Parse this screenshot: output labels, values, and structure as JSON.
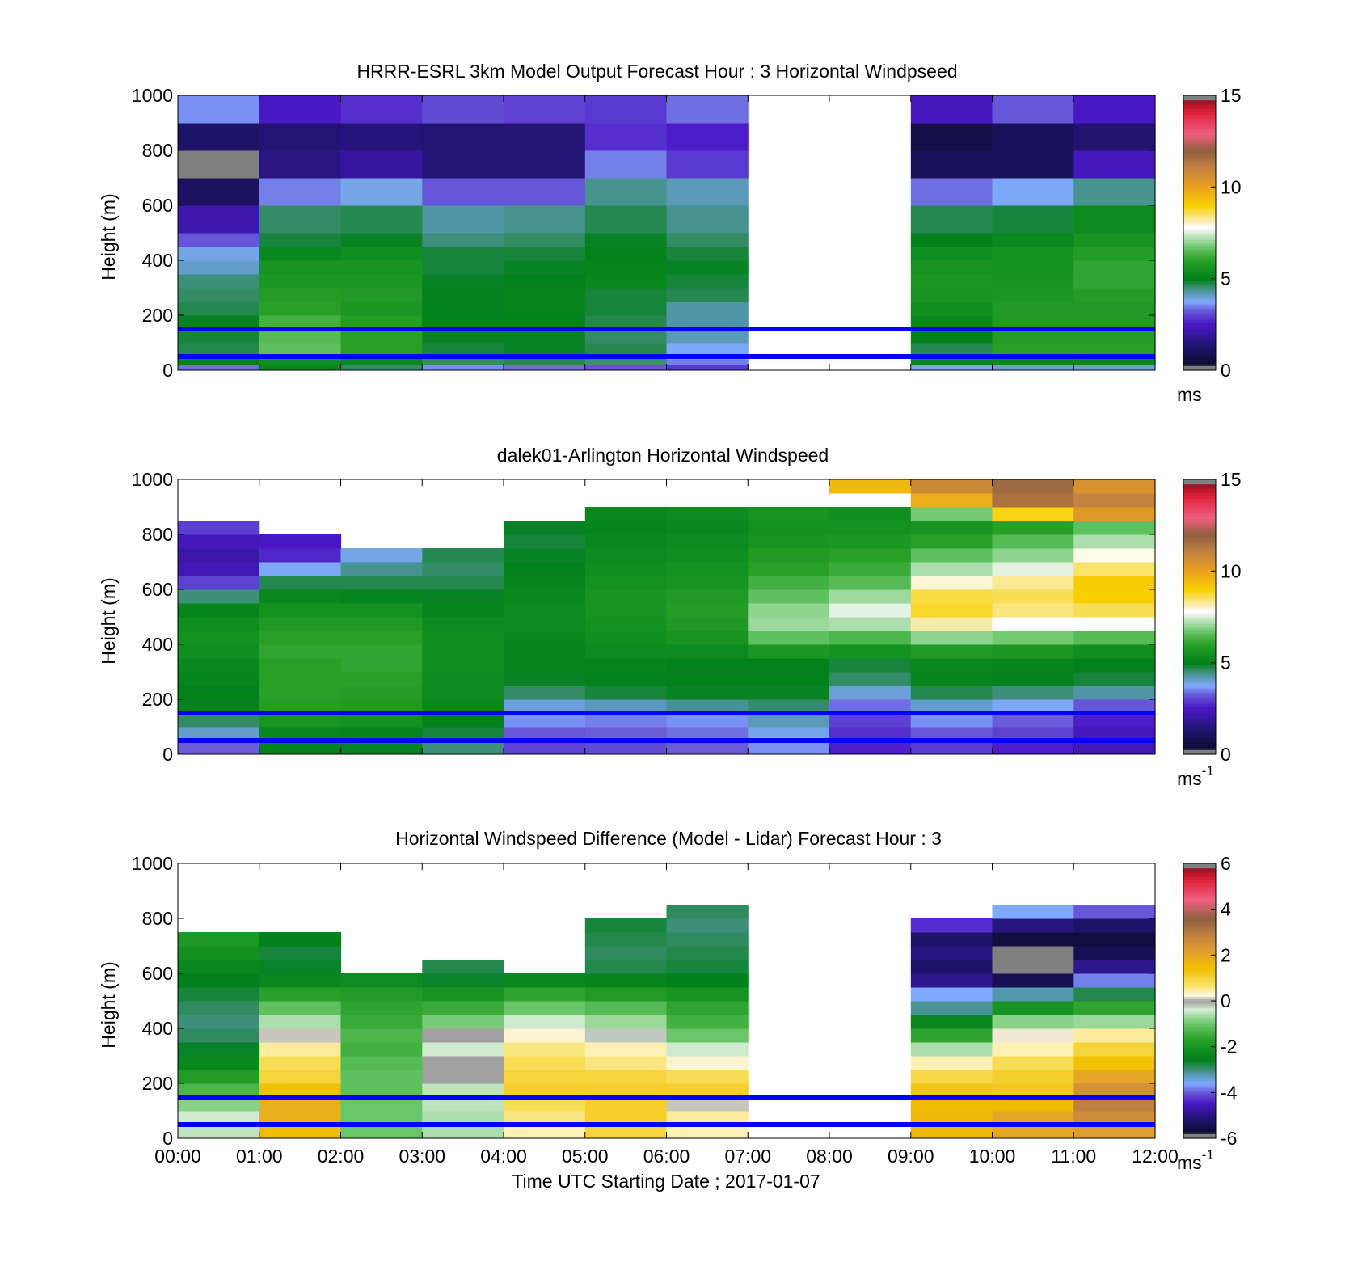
{
  "figure": {
    "xticks": [
      "00:00",
      "01:00",
      "02:00",
      "03:00",
      "04:00",
      "05:00",
      "06:00",
      "07:00",
      "08:00",
      "09:00",
      "10:00",
      "11:00",
      "12:00"
    ],
    "xlabel": "Time UTC  Starting Date ; 2017-01-07",
    "ylabel": "Height (m)",
    "yticks": [
      "0",
      "200",
      "400",
      "600",
      "800",
      "1000"
    ],
    "reference_lines_m": [
      50,
      150
    ],
    "reference_line_color": "#0000ff"
  },
  "chart_data": [
    {
      "type": "heatmap",
      "title": "HRRR-ESRL 3km Model Output   Forecast Hour : 3 Horizontal Windpseed",
      "ylabel": "Height (m)",
      "xlim_hours": [
        0,
        12
      ],
      "ylim": [
        0,
        1000
      ],
      "colorbar": {
        "min": 0,
        "max": 15,
        "ticks": [
          "0",
          "5",
          "10",
          "15"
        ],
        "unit": "ms",
        "unit_sup": "",
        "palette": "speed"
      },
      "missing_hours": [
        [
          7,
          9
        ]
      ],
      "time_hours": [
        0.5,
        1.5,
        2.5,
        3.5,
        4.5,
        5.5,
        6.5,
        9.5,
        10.5,
        11.5
      ],
      "layer_tops_m": [
        20,
        40,
        60,
        100,
        150,
        200,
        250,
        300,
        350,
        400,
        450,
        500,
        600,
        700,
        800,
        900,
        1000
      ],
      "values": [
        [
          3.4,
          5.2,
          4.6,
          3.6,
          3.4,
          3.2,
          2.9,
          3.8,
          4.0,
          4.0
        ],
        [
          5.0,
          5.4,
          5.2,
          4.6,
          4.7,
          4.5,
          3.5,
          4.9,
          5.2,
          5.2
        ],
        [
          5.2,
          5.6,
          5.0,
          4.7,
          4.8,
          4.7,
          3.9,
          4.8,
          5.3,
          5.3
        ],
        [
          4.7,
          6.6,
          6.0,
          4.8,
          4.9,
          4.7,
          3.8,
          4.7,
          6.0,
          6.0
        ],
        [
          4.8,
          6.5,
          6.0,
          4.9,
          4.9,
          4.6,
          4.2,
          5.0,
          5.9,
          5.9
        ],
        [
          4.9,
          6.3,
          5.9,
          5.0,
          5.0,
          4.7,
          4.3,
          5.2,
          5.8,
          5.8
        ],
        [
          4.7,
          6.0,
          5.7,
          5.0,
          5.1,
          4.8,
          4.3,
          5.4,
          5.8,
          5.8
        ],
        [
          4.6,
          5.9,
          5.8,
          5.0,
          5.1,
          4.8,
          4.7,
          5.6,
          5.7,
          5.9
        ],
        [
          4.5,
          5.7,
          5.7,
          4.9,
          5.0,
          5.2,
          4.8,
          5.7,
          5.6,
          6.1
        ],
        [
          4.1,
          5.6,
          5.6,
          4.8,
          4.9,
          5.1,
          4.9,
          5.6,
          5.5,
          6.1
        ],
        [
          3.9,
          5.2,
          5.4,
          4.8,
          4.8,
          5.0,
          4.8,
          5.4,
          5.5,
          5.9
        ],
        [
          3.2,
          4.8,
          4.9,
          4.5,
          4.6,
          4.9,
          4.6,
          5.0,
          5.2,
          5.6
        ],
        [
          2.2,
          4.6,
          4.7,
          4.3,
          4.4,
          4.7,
          4.4,
          4.7,
          4.8,
          5.3
        ],
        [
          1.1,
          3.5,
          3.9,
          3.2,
          3.2,
          4.4,
          4.2,
          3.4,
          3.8,
          4.4
        ],
        [
          0.3,
          1.6,
          2.0,
          1.4,
          1.4,
          3.5,
          2.9,
          1.0,
          1.0,
          2.4
        ],
        [
          1.2,
          1.4,
          1.5,
          1.4,
          1.4,
          2.8,
          2.6,
          0.7,
          1.0,
          1.3
        ],
        [
          3.6,
          2.5,
          2.8,
          3.1,
          3.0,
          2.9,
          3.4,
          2.4,
          3.2,
          2.5
        ]
      ]
    },
    {
      "type": "heatmap",
      "title": "dalek01-Arlington  Horizontal Windspeed",
      "ylabel": "Height (m)",
      "xlim_hours": [
        0,
        12
      ],
      "ylim": [
        0,
        1000
      ],
      "colorbar": {
        "min": 0,
        "max": 15,
        "ticks": [
          "0",
          "5",
          "10",
          "15"
        ],
        "unit": "ms",
        "unit_sup": "-1",
        "palette": "speed"
      },
      "time_hours": [
        0.5,
        1.5,
        2.5,
        3.5,
        4.5,
        5.5,
        6.5,
        7.5,
        8.5,
        9.5,
        10.5,
        11.5
      ],
      "layer_tops_m": [
        50,
        100,
        150,
        200,
        250,
        300,
        350,
        400,
        450,
        500,
        550,
        600,
        650,
        700,
        750,
        800,
        850,
        900,
        950,
        1000
      ],
      "values": [
        [
          3.3,
          5.0,
          4.9,
          4.5,
          3.0,
          3.1,
          3.3,
          3.6,
          2.6,
          2.9,
          2.6,
          2.3
        ],
        [
          4.1,
          5.2,
          5.1,
          4.8,
          3.2,
          3.3,
          3.4,
          3.9,
          2.8,
          3.2,
          3.0,
          2.4
        ],
        [
          4.6,
          5.6,
          5.5,
          5.0,
          3.6,
          3.5,
          3.6,
          4.2,
          3.0,
          3.6,
          3.3,
          2.6
        ],
        [
          4.9,
          5.9,
          5.8,
          5.2,
          4.0,
          4.2,
          4.4,
          4.6,
          3.4,
          4.1,
          3.8,
          3.2
        ],
        [
          5.0,
          6.0,
          5.9,
          5.3,
          4.6,
          4.8,
          4.9,
          4.9,
          4.0,
          4.7,
          4.5,
          4.3
        ],
        [
          5.1,
          6.0,
          6.0,
          5.3,
          4.9,
          5.0,
          5.0,
          5.0,
          4.6,
          5.1,
          5.0,
          4.8
        ],
        [
          5.2,
          6.0,
          6.1,
          5.4,
          5.1,
          5.1,
          5.0,
          5.0,
          4.8,
          5.2,
          5.1,
          5.0
        ],
        [
          5.4,
          6.1,
          6.1,
          5.4,
          5.1,
          5.3,
          5.3,
          5.7,
          5.5,
          5.8,
          5.7,
          5.4
        ],
        [
          5.5,
          6.0,
          6.0,
          5.4,
          5.2,
          5.4,
          5.6,
          6.6,
          6.4,
          7.0,
          6.8,
          6.5
        ],
        [
          5.4,
          5.8,
          5.8,
          5.3,
          5.3,
          5.5,
          5.8,
          7.1,
          7.2,
          8.2,
          7.8,
          7.8
        ],
        [
          5.1,
          5.5,
          5.5,
          5.1,
          5.3,
          5.6,
          5.9,
          7.0,
          7.6,
          8.8,
          8.4,
          8.6
        ],
        [
          4.5,
          5.2,
          5.1,
          4.9,
          5.2,
          5.6,
          5.8,
          6.6,
          7.1,
          8.7,
          8.6,
          9.0
        ],
        [
          3.0,
          4.7,
          4.7,
          4.7,
          5.1,
          5.5,
          5.6,
          6.3,
          6.5,
          8.0,
          8.3,
          9.1
        ],
        [
          2.3,
          3.8,
          4.4,
          4.6,
          5.0,
          5.4,
          5.5,
          6.0,
          6.2,
          7.2,
          7.6,
          8.5
        ],
        [
          2.1,
          2.7,
          3.9,
          4.7,
          4.9,
          5.3,
          5.4,
          5.8,
          6.0,
          6.6,
          7.0,
          7.9
        ],
        [
          2.4,
          2.5,
          null,
          null,
          4.8,
          5.2,
          5.3,
          5.6,
          5.7,
          6.0,
          6.5,
          7.2
        ],
        [
          3.0,
          null,
          null,
          null,
          4.9,
          5.1,
          5.2,
          5.5,
          5.5,
          5.6,
          6.0,
          6.6
        ],
        [
          null,
          null,
          null,
          null,
          null,
          5.2,
          5.3,
          5.6,
          5.4,
          6.8,
          8.9,
          10.3
        ],
        [
          null,
          null,
          null,
          null,
          null,
          null,
          null,
          null,
          null,
          9.8,
          11.5,
          11.0
        ],
        [
          null,
          null,
          null,
          null,
          null,
          null,
          null,
          null,
          9.5,
          10.8,
          11.7,
          10.5
        ]
      ]
    },
    {
      "type": "heatmap",
      "title": "Horizontal Windspeed Difference (Model - Lidar) Forecast Hour : 3",
      "ylabel": "Height (m)",
      "xlabel": "Time UTC  Starting Date ; 2017-01-07",
      "xlim_hours": [
        0,
        12
      ],
      "ylim": [
        0,
        1000
      ],
      "colorbar": {
        "min": -6,
        "max": 6,
        "ticks": [
          "-6",
          "-4",
          "-2",
          "0",
          "2",
          "4",
          "6"
        ],
        "unit": "ms",
        "unit_sup": "-1",
        "palette": "diff"
      },
      "missing_hours": [
        [
          7,
          9
        ]
      ],
      "time_hours": [
        0.5,
        1.5,
        2.5,
        3.5,
        4.5,
        5.5,
        6.5,
        9.5,
        10.5,
        11.5
      ],
      "layer_tops_m": [
        50,
        100,
        150,
        200,
        250,
        300,
        350,
        400,
        450,
        500,
        550,
        600,
        650,
        700,
        750,
        800,
        850
      ],
      "values": [
        [
          -0.5,
          1.5,
          -1.0,
          -0.6,
          0.4,
          1.0,
          0.4,
          1.6,
          2.0,
          2.2
        ],
        [
          -0.4,
          1.8,
          -1.0,
          -0.6,
          0.6,
          1.1,
          0.5,
          1.6,
          2.0,
          2.6
        ],
        [
          -0.8,
          1.8,
          -1.0,
          -0.5,
          0.8,
          1.1,
          0.1,
          1.5,
          1.5,
          2.9
        ],
        [
          -1.3,
          1.4,
          -1.1,
          -0.5,
          1.1,
          1.1,
          1.1,
          1.3,
          1.2,
          2.5
        ],
        [
          -1.8,
          1.0,
          -1.1,
          0.0,
          1.0,
          1.0,
          0.8,
          0.9,
          1.1,
          2.0
        ],
        [
          -2.3,
          0.8,
          -1.2,
          0.0,
          0.8,
          0.6,
          0.3,
          0.4,
          0.8,
          1.4
        ],
        [
          -2.6,
          0.5,
          -1.4,
          -0.4,
          0.6,
          0.4,
          -0.4,
          -0.6,
          0.4,
          1.0
        ],
        [
          -2.9,
          0.1,
          -1.3,
          0.0,
          0.3,
          -0.2,
          -1.0,
          -1.6,
          0.2,
          0.5
        ],
        [
          -3.0,
          -0.6,
          -1.5,
          -0.9,
          -0.4,
          -0.7,
          -1.4,
          -2.3,
          -0.8,
          -0.7
        ],
        [
          -2.9,
          -1.1,
          -1.6,
          -1.5,
          -1.0,
          -1.2,
          -1.6,
          -3.1,
          -2.0,
          -1.6
        ],
        [
          -2.7,
          -1.7,
          -1.8,
          -2.0,
          -1.6,
          -1.8,
          -2.0,
          -3.6,
          -3.2,
          -2.8
        ],
        [
          -2.5,
          -2.3,
          -2.2,
          -2.6,
          -2.3,
          -2.4,
          -2.5,
          -4.9,
          -5.4,
          -3.8
        ],
        [
          -2.3,
          -2.6,
          null,
          -2.8,
          null,
          -2.8,
          -2.7,
          -5.2,
          -5.8,
          -4.9
        ],
        [
          -2.1,
          -2.7,
          null,
          null,
          null,
          -2.9,
          -2.8,
          -5.0,
          -5.8,
          -5.4
        ],
        [
          -1.9,
          -2.5,
          null,
          null,
          null,
          -2.8,
          -2.9,
          -5.2,
          -5.6,
          -5.6
        ],
        [
          null,
          null,
          null,
          null,
          null,
          -2.7,
          -3.0,
          -4.3,
          -5.0,
          -5.2
        ],
        [
          null,
          null,
          null,
          null,
          null,
          null,
          -2.9,
          null,
          -3.6,
          -4.0
        ]
      ]
    }
  ]
}
